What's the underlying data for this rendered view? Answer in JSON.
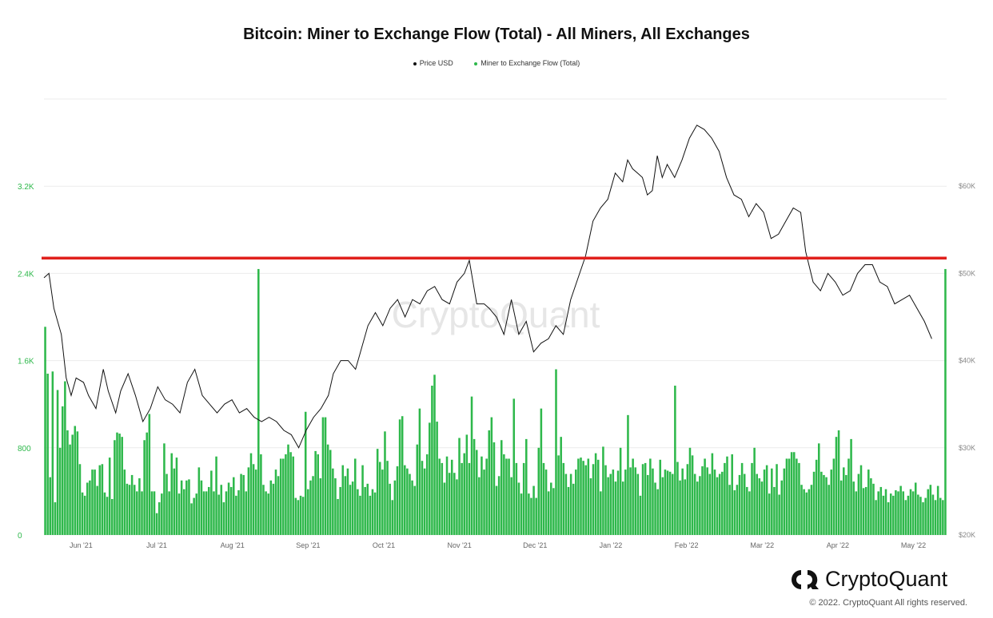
{
  "chart_data": {
    "type": "bar",
    "title": "Bitcoin: Miner to Exchange Flow (Total) - All Miners, All Exchanges",
    "legend_position": "top-center",
    "grid": true,
    "watermark": "CryptoQuant",
    "x_tick_labels": [
      "Jun '21",
      "Jul '21",
      "Aug '21",
      "Sep '21",
      "Oct '21",
      "Nov '21",
      "Dec '21",
      "Jan '22",
      "Feb '22",
      "Mar '22",
      "Apr '22",
      "May '22"
    ],
    "x_range_days": [
      0,
      365
    ],
    "y_left": {
      "ticks": [
        0,
        800,
        1600,
        2400,
        3200
      ],
      "tick_labels": [
        "0",
        "800",
        "1.6K",
        "2.4K",
        "3.2K"
      ],
      "ylim": [
        0,
        4000
      ]
    },
    "y_right": {
      "ticks": [
        20000,
        30000,
        40000,
        50000,
        60000
      ],
      "tick_labels": [
        "$20K",
        "$30K",
        "$40K",
        "$50K",
        "$60K"
      ],
      "ylim": [
        20000,
        70000
      ]
    },
    "reference_line": {
      "value": 2540,
      "axis": "left",
      "color": "#e0201c"
    },
    "series": [
      {
        "name": "Price USD",
        "type": "line",
        "axis": "right",
        "color": "#111111",
        "points": [
          [
            0,
            49500
          ],
          [
            2,
            50000
          ],
          [
            4,
            46000
          ],
          [
            7,
            43000
          ],
          [
            9,
            38000
          ],
          [
            11,
            36000
          ],
          [
            13,
            38000
          ],
          [
            16,
            37500
          ],
          [
            18,
            36000
          ],
          [
            21,
            34500
          ],
          [
            24,
            39000
          ],
          [
            26,
            36500
          ],
          [
            29,
            34000
          ],
          [
            31,
            36500
          ],
          [
            34,
            38500
          ],
          [
            37,
            36000
          ],
          [
            40,
            33000
          ],
          [
            43,
            34500
          ],
          [
            46,
            37000
          ],
          [
            49,
            35500
          ],
          [
            52,
            35000
          ],
          [
            55,
            34000
          ],
          [
            58,
            37500
          ],
          [
            61,
            39000
          ],
          [
            64,
            36000
          ],
          [
            67,
            35000
          ],
          [
            70,
            34000
          ],
          [
            73,
            35000
          ],
          [
            76,
            35500
          ],
          [
            79,
            34000
          ],
          [
            82,
            34500
          ],
          [
            85,
            33500
          ],
          [
            88,
            33000
          ],
          [
            91,
            33500
          ],
          [
            94,
            33000
          ],
          [
            97,
            32000
          ],
          [
            100,
            31500
          ],
          [
            103,
            30000
          ],
          [
            106,
            32000
          ],
          [
            109,
            33500
          ],
          [
            112,
            34500
          ],
          [
            115,
            36000
          ],
          [
            117,
            38500
          ],
          [
            120,
            40000
          ],
          [
            123,
            40000
          ],
          [
            126,
            39000
          ],
          [
            128,
            41000
          ],
          [
            131,
            44000
          ],
          [
            134,
            45500
          ],
          [
            137,
            44000
          ],
          [
            140,
            46000
          ],
          [
            143,
            47000
          ],
          [
            146,
            45000
          ],
          [
            149,
            47000
          ],
          [
            152,
            46500
          ],
          [
            155,
            48000
          ],
          [
            158,
            48500
          ],
          [
            161,
            47000
          ],
          [
            164,
            46500
          ],
          [
            167,
            49000
          ],
          [
            170,
            50000
          ],
          [
            172,
            51500
          ],
          [
            175,
            46500
          ],
          [
            178,
            46500
          ],
          [
            180,
            46000
          ],
          [
            183,
            45000
          ],
          [
            186,
            43000
          ],
          [
            189,
            47000
          ],
          [
            192,
            43000
          ],
          [
            195,
            44500
          ],
          [
            198,
            41000
          ],
          [
            201,
            42000
          ],
          [
            204,
            42500
          ],
          [
            207,
            44000
          ],
          [
            210,
            43000
          ],
          [
            213,
            47000
          ],
          [
            216,
            49500
          ],
          [
            219,
            52000
          ],
          [
            222,
            56000
          ],
          [
            225,
            57500
          ],
          [
            228,
            58500
          ],
          [
            231,
            61500
          ],
          [
            234,
            60500
          ],
          [
            236,
            63000
          ],
          [
            238,
            62000
          ],
          [
            240,
            61500
          ],
          [
            242,
            61000
          ],
          [
            244,
            59000
          ],
          [
            246,
            59500
          ],
          [
            248,
            63500
          ],
          [
            250,
            61000
          ],
          [
            252,
            62500
          ],
          [
            255,
            61000
          ],
          [
            258,
            63000
          ],
          [
            261,
            65500
          ],
          [
            264,
            67000
          ],
          [
            267,
            66500
          ],
          [
            270,
            65500
          ],
          [
            273,
            64000
          ],
          [
            276,
            61000
          ],
          [
            279,
            59000
          ],
          [
            282,
            58500
          ],
          [
            285,
            56500
          ],
          [
            288,
            58000
          ],
          [
            291,
            57000
          ],
          [
            294,
            54000
          ],
          [
            297,
            54500
          ],
          [
            300,
            56000
          ],
          [
            303,
            57500
          ],
          [
            306,
            57000
          ],
          [
            308,
            52500
          ],
          [
            311,
            49000
          ],
          [
            314,
            48000
          ],
          [
            317,
            50000
          ],
          [
            320,
            49000
          ],
          [
            323,
            47500
          ],
          [
            326,
            48000
          ],
          [
            329,
            50000
          ],
          [
            332,
            51000
          ],
          [
            335,
            51000
          ],
          [
            338,
            49000
          ],
          [
            341,
            48500
          ],
          [
            344,
            46500
          ],
          [
            347,
            47000
          ],
          [
            350,
            47500
          ],
          [
            353,
            46000
          ],
          [
            356,
            44500
          ],
          [
            359,
            42500
          ]
        ]
      },
      {
        "name": "Miner to Exchange Flow (Total)",
        "type": "bar",
        "axis": "left",
        "color": "#2eb84b",
        "values": [
          1910,
          1480,
          530,
          1500,
          300,
          1330,
          800,
          1180,
          1410,
          960,
          830,
          920,
          1000,
          950,
          650,
          390,
          360,
          480,
          500,
          600,
          600,
          450,
          640,
          650,
          390,
          350,
          710,
          330,
          870,
          940,
          930,
          900,
          600,
          470,
          460,
          550,
          460,
          400,
          520,
          400,
          870,
          940,
          1110,
          400,
          400,
          200,
          300,
          380,
          840,
          560,
          400,
          750,
          610,
          710,
          380,
          500,
          420,
          500,
          510,
          290,
          340,
          380,
          620,
          500,
          400,
          400,
          440,
          590,
          400,
          720,
          370,
          460,
          300,
          400,
          480,
          440,
          530,
          360,
          410,
          560,
          550,
          400,
          620,
          750,
          650,
          600,
          2440,
          740,
          460,
          400,
          380,
          500,
          470,
          600,
          540,
          700,
          700,
          740,
          830,
          760,
          720,
          340,
          320,
          360,
          350,
          1130,
          420,
          500,
          540,
          770,
          740,
          520,
          1080,
          1080,
          830,
          780,
          610,
          520,
          330,
          440,
          640,
          540,
          610,
          460,
          490,
          700,
          420,
          360,
          640,
          440,
          470,
          360,
          420,
          390,
          790,
          670,
          600,
          950,
          680,
          470,
          320,
          500,
          630,
          1060,
          1090,
          640,
          610,
          560,
          500,
          450,
          830,
          1160,
          680,
          610,
          740,
          1030,
          1370,
          1470,
          1040,
          700,
          660,
          480,
          720,
          570,
          690,
          570,
          510,
          890,
          660,
          750,
          920,
          660,
          1270,
          880,
          780,
          530,
          720,
          600,
          700,
          960,
          1080,
          850,
          450,
          540,
          870,
          740,
          700,
          700,
          530,
          1250,
          660,
          480,
          380,
          660,
          880,
          380,
          340,
          450,
          340,
          800,
          1160,
          660,
          600,
          400,
          480,
          430,
          1520,
          730,
          900,
          660,
          560,
          440,
          560,
          470,
          600,
          700,
          710,
          680,
          640,
          700,
          520,
          650,
          750,
          690,
          400,
          810,
          640,
          530,
          560,
          600,
          490,
          590,
          800,
          490,
          600,
          1100,
          620,
          700,
          620,
          560,
          360,
          650,
          660,
          550,
          700,
          610,
          480,
          420,
          690,
          530,
          600,
          590,
          580,
          560,
          1370,
          670,
          500,
          610,
          510,
          650,
          800,
          730,
          560,
          490,
          540,
          630,
          700,
          620,
          560,
          750,
          600,
          530,
          560,
          580,
          660,
          720,
          460,
          740,
          410,
          460,
          550,
          660,
          560,
          440,
          400,
          660,
          800,
          560,
          520,
          490,
          600,
          640,
          380,
          610,
          440,
          650,
          370,
          500,
          610,
          700,
          700,
          760,
          760,
          700,
          660,
          460,
          420,
          390,
          420,
          460,
          580,
          690,
          840,
          580,
          550,
          530,
          460,
          600,
          700,
          900,
          960,
          500,
          620,
          550,
          700,
          880,
          490,
          400,
          560,
          640,
          430,
          440,
          600,
          520,
          470,
          320,
          400,
          440,
          360,
          420,
          300,
          380,
          360,
          410,
          400,
          450,
          400,
          320,
          360,
          420,
          400,
          480,
          370,
          350,
          300,
          340,
          420,
          460,
          370,
          320,
          450,
          340,
          320,
          2440
        ]
      }
    ]
  },
  "footer": {
    "logo_text": "CryptoQuant",
    "copyright": "© 2022. CryptoQuant All rights reserved."
  }
}
